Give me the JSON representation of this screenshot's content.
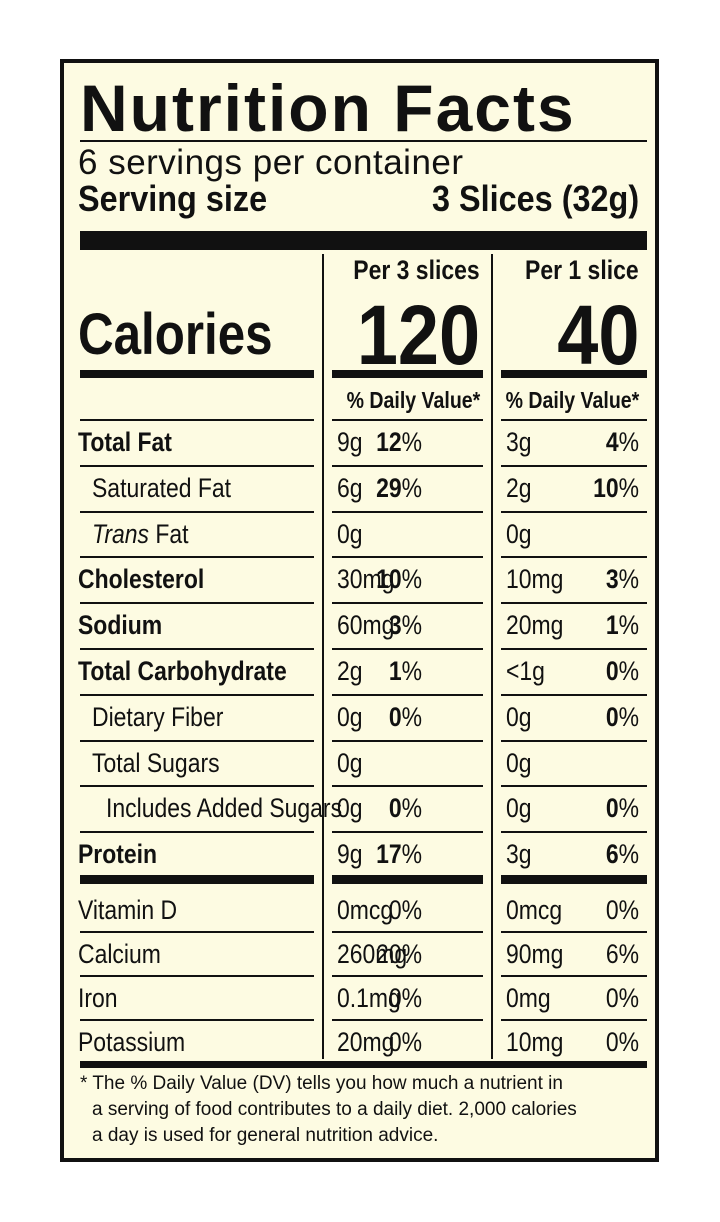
{
  "title": "Nutrition Facts",
  "servings_per_container": "6 servings per container",
  "serving_size_label": "Serving size",
  "serving_size_value": "3 Slices (32g)",
  "calories_label": "Calories",
  "columns": [
    {
      "header": "Per 3 slices",
      "calories": "120",
      "dv_header": "% Daily Value*"
    },
    {
      "header": "Per 1 slice",
      "calories": "40",
      "dv_header": "% Daily Value*"
    }
  ],
  "nutrients": [
    {
      "name": "Total Fat",
      "bold": true,
      "indent": 0,
      "c1_amt": "9g",
      "c1_pct": "12",
      "c2_amt": "3g",
      "c2_pct": "4"
    },
    {
      "name": "Saturated Fat",
      "bold": false,
      "indent": 1,
      "c1_amt": "6g",
      "c1_pct": "29",
      "c2_amt": "2g",
      "c2_pct": "10"
    },
    {
      "name_italic": "Trans",
      "name": "Fat",
      "bold": false,
      "indent": 1,
      "c1_amt": "0g",
      "c1_pct": "",
      "c2_amt": "0g",
      "c2_pct": ""
    },
    {
      "name": "Cholesterol",
      "bold": true,
      "indent": 0,
      "c1_amt": "30mg",
      "c1_pct": "10",
      "c2_amt": "10mg",
      "c2_pct": "3"
    },
    {
      "name": "Sodium",
      "bold": true,
      "indent": 0,
      "c1_amt": "60mg",
      "c1_pct": "3",
      "c2_amt": "20mg",
      "c2_pct": "1"
    },
    {
      "name": "Total Carbohydrate",
      "bold": true,
      "indent": 0,
      "c1_amt": "2g",
      "c1_pct": "1",
      "c2_amt": "<1g",
      "c2_pct": "0"
    },
    {
      "name": "Dietary Fiber",
      "bold": false,
      "indent": 1,
      "c1_amt": "0g",
      "c1_pct": "0",
      "c2_amt": "0g",
      "c2_pct": "0"
    },
    {
      "name": "Total Sugars",
      "bold": false,
      "indent": 1,
      "c1_amt": "0g",
      "c1_pct": "",
      "c2_amt": "0g",
      "c2_pct": ""
    },
    {
      "name": "Includes Added Sugars",
      "bold": false,
      "indent": 2,
      "c1_amt": "0g",
      "c1_pct": "0",
      "c2_amt": "0g",
      "c2_pct": "0"
    },
    {
      "name": "Protein",
      "bold": true,
      "indent": 0,
      "c1_amt": "9g",
      "c1_pct": "17",
      "c2_amt": "3g",
      "c2_pct": "6"
    }
  ],
  "vitamins": [
    {
      "name": "Vitamin D",
      "c1_amt": "0mcg",
      "c1_pct": "0%",
      "c2_amt": "0mcg",
      "c2_pct": "0%"
    },
    {
      "name": "Calcium",
      "c1_amt": "260mg",
      "c1_pct": "20%",
      "c2_amt": "90mg",
      "c2_pct": "6%"
    },
    {
      "name": "Iron",
      "c1_amt": "0.1mg",
      "c1_pct": "0%",
      "c2_amt": "0mg",
      "c2_pct": "0%"
    },
    {
      "name": "Potassium",
      "c1_amt": "20mg",
      "c1_pct": "0%",
      "c2_amt": "10mg",
      "c2_pct": "0%"
    }
  ],
  "percent_sign": "%",
  "footnote_lines": [
    "* The % Daily Value (DV) tells you how much a nutrient in",
    "a serving of food contributes to a daily diet. 2,000 calories",
    "a day is used for general nutrition advice."
  ]
}
